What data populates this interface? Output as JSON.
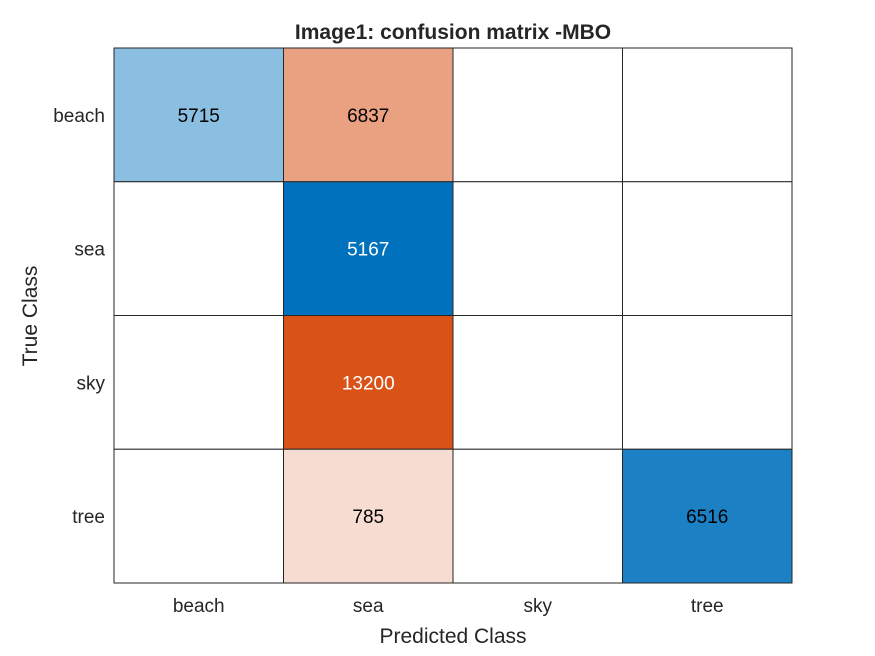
{
  "chart_data": {
    "type": "heatmap",
    "title": "Image1: confusion matrix -MBO",
    "xlabel": "Predicted Class",
    "ylabel": "True Class",
    "row_labels": [
      "beach",
      "sea",
      "sky",
      "tree"
    ],
    "col_labels": [
      "beach",
      "sea",
      "sky",
      "tree"
    ],
    "values": [
      [
        5715,
        6837,
        0,
        0
      ],
      [
        0,
        5167,
        0,
        0
      ],
      [
        0,
        13200,
        0,
        0
      ],
      [
        0,
        785,
        0,
        6516
      ]
    ],
    "colors": {
      "correct": "#0072bd",
      "incorrect": "#d95319",
      "empty": "#ffffff",
      "grid": "#262626"
    }
  }
}
